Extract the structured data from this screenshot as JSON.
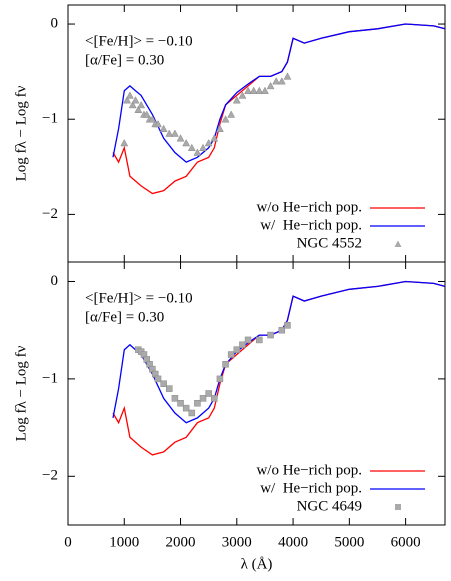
{
  "chart_data": [
    {
      "type": "line",
      "ylabel": "Log fλ − Log fν",
      "annotations": [
        "<[Fe/H]> = −0.10",
        "[α/Fe]   = 0.30"
      ],
      "xlim": [
        0,
        6700
      ],
      "ylim": [
        -2.5,
        0.2
      ],
      "yticks": [
        {
          "value": -2,
          "label": "−2"
        },
        {
          "value": -1,
          "label": "−1"
        },
        0
      ],
      "series": [
        {
          "name": "w/o He−rich pop.",
          "color": "#ff0000",
          "kind": "line",
          "x": [
            800,
            900,
            1000,
            1100,
            1300,
            1500,
            1700,
            1900,
            2100,
            2300,
            2500,
            2600,
            2700,
            2800,
            3000,
            3200,
            3400,
            3600,
            3800,
            3900,
            4000,
            4200,
            4500,
            5000,
            5500,
            6000,
            6500,
            6700
          ],
          "values": [
            -1.35,
            -1.45,
            -1.3,
            -1.6,
            -1.7,
            -1.78,
            -1.75,
            -1.65,
            -1.6,
            -1.45,
            -1.4,
            -1.3,
            -1.05,
            -0.85,
            -0.75,
            -0.65,
            -0.55,
            -0.55,
            -0.5,
            -0.4,
            -0.15,
            -0.2,
            -0.15,
            -0.08,
            -0.05,
            0.0,
            -0.02,
            -0.05
          ]
        },
        {
          "name": "w/  He−rich pop.",
          "color": "#0000ff",
          "kind": "line",
          "x": [
            800,
            900,
            1000,
            1100,
            1200,
            1300,
            1500,
            1700,
            1900,
            2100,
            2300,
            2500,
            2600,
            2700,
            2800,
            3000,
            3200,
            3400,
            3600,
            3800,
            3900,
            4000,
            4200,
            4500,
            5000,
            5500,
            6000,
            6500,
            6700
          ],
          "values": [
            -1.4,
            -1.1,
            -0.7,
            -0.65,
            -0.7,
            -0.75,
            -0.95,
            -1.2,
            -1.35,
            -1.45,
            -1.4,
            -1.3,
            -1.2,
            -1.0,
            -0.85,
            -0.72,
            -0.63,
            -0.55,
            -0.55,
            -0.5,
            -0.4,
            -0.15,
            -0.2,
            -0.15,
            -0.08,
            -0.05,
            0.0,
            -0.02,
            -0.05
          ]
        },
        {
          "name": "NGC 4552",
          "color": "#aaaaaa",
          "kind": "scatter",
          "marker": "triangle",
          "x": [
            1000,
            1050,
            1100,
            1150,
            1200,
            1250,
            1300,
            1350,
            1400,
            1450,
            1500,
            1550,
            1600,
            1700,
            1800,
            1900,
            2000,
            2100,
            2200,
            2300,
            2400,
            2500,
            2600,
            2700,
            2800,
            2900,
            3000,
            3100,
            3200,
            3300,
            3400,
            3500,
            3600,
            3700,
            3800,
            3900
          ],
          "values": [
            -1.25,
            -0.8,
            -0.75,
            -0.85,
            -0.8,
            -0.9,
            -0.85,
            -0.95,
            -0.95,
            -1.0,
            -1.0,
            -1.05,
            -1.05,
            -1.1,
            -1.15,
            -1.15,
            -1.2,
            -1.25,
            -1.3,
            -1.35,
            -1.3,
            -1.25,
            -1.2,
            -1.1,
            -1.0,
            -0.95,
            -0.8,
            -0.75,
            -0.7,
            -0.7,
            -0.7,
            -0.7,
            -0.65,
            -0.6,
            -0.6,
            -0.55
          ]
        }
      ]
    },
    {
      "type": "line",
      "ylabel": "Log fλ − Log fν",
      "xlabel": "λ (Å)",
      "annotations": [
        "<[Fe/H]> = −0.10",
        "[α/Fe]   = 0.30"
      ],
      "xlim": [
        0,
        6700
      ],
      "ylim": [
        -2.5,
        0.2
      ],
      "xticks": [
        0,
        1000,
        2000,
        3000,
        4000,
        5000,
        6000
      ],
      "yticks": [
        {
          "value": -2,
          "label": "−2"
        },
        {
          "value": -1,
          "label": "−1"
        },
        0
      ],
      "series": [
        {
          "name": "w/o He−rich pop.",
          "color": "#ff0000",
          "kind": "line",
          "x": [
            800,
            900,
            1000,
            1100,
            1300,
            1500,
            1700,
            1900,
            2100,
            2300,
            2500,
            2600,
            2700,
            2800,
            3000,
            3200,
            3400,
            3600,
            3800,
            3900,
            4000,
            4200,
            4500,
            5000,
            5500,
            6000,
            6500,
            6700
          ],
          "values": [
            -1.35,
            -1.45,
            -1.3,
            -1.6,
            -1.7,
            -1.78,
            -1.75,
            -1.65,
            -1.6,
            -1.45,
            -1.4,
            -1.3,
            -1.05,
            -0.85,
            -0.75,
            -0.65,
            -0.55,
            -0.55,
            -0.5,
            -0.4,
            -0.15,
            -0.2,
            -0.15,
            -0.08,
            -0.05,
            0.0,
            -0.02,
            -0.05
          ]
        },
        {
          "name": "w/  He−rich pop.",
          "color": "#0000ff",
          "kind": "line",
          "x": [
            800,
            900,
            1000,
            1100,
            1200,
            1300,
            1500,
            1700,
            1900,
            2100,
            2300,
            2500,
            2600,
            2700,
            2800,
            3000,
            3200,
            3400,
            3600,
            3800,
            3900,
            4000,
            4200,
            4500,
            5000,
            5500,
            6000,
            6500,
            6700
          ],
          "values": [
            -1.4,
            -1.1,
            -0.7,
            -0.65,
            -0.7,
            -0.75,
            -0.95,
            -1.2,
            -1.35,
            -1.45,
            -1.4,
            -1.3,
            -1.2,
            -1.0,
            -0.85,
            -0.72,
            -0.63,
            -0.55,
            -0.55,
            -0.5,
            -0.4,
            -0.15,
            -0.2,
            -0.15,
            -0.08,
            -0.05,
            0.0,
            -0.02,
            -0.05
          ]
        },
        {
          "name": "NGC 4649",
          "color": "#aaaaaa",
          "kind": "scatter",
          "marker": "square",
          "x": [
            1250,
            1300,
            1350,
            1400,
            1450,
            1500,
            1550,
            1600,
            1700,
            1800,
            1900,
            2000,
            2100,
            2200,
            2300,
            2400,
            2500,
            2600,
            2700,
            2800,
            2900,
            3000,
            3100,
            3200,
            3400,
            3600,
            3800,
            3900
          ],
          "values": [
            -0.7,
            -0.72,
            -0.75,
            -0.8,
            -0.85,
            -0.9,
            -0.95,
            -1.0,
            -1.05,
            -1.1,
            -1.2,
            -1.25,
            -1.3,
            -1.35,
            -1.25,
            -1.2,
            -1.15,
            -1.2,
            -1.0,
            -0.85,
            -0.75,
            -0.7,
            -0.65,
            -0.6,
            -0.6,
            -0.55,
            -0.5,
            -0.45
          ]
        }
      ]
    }
  ]
}
